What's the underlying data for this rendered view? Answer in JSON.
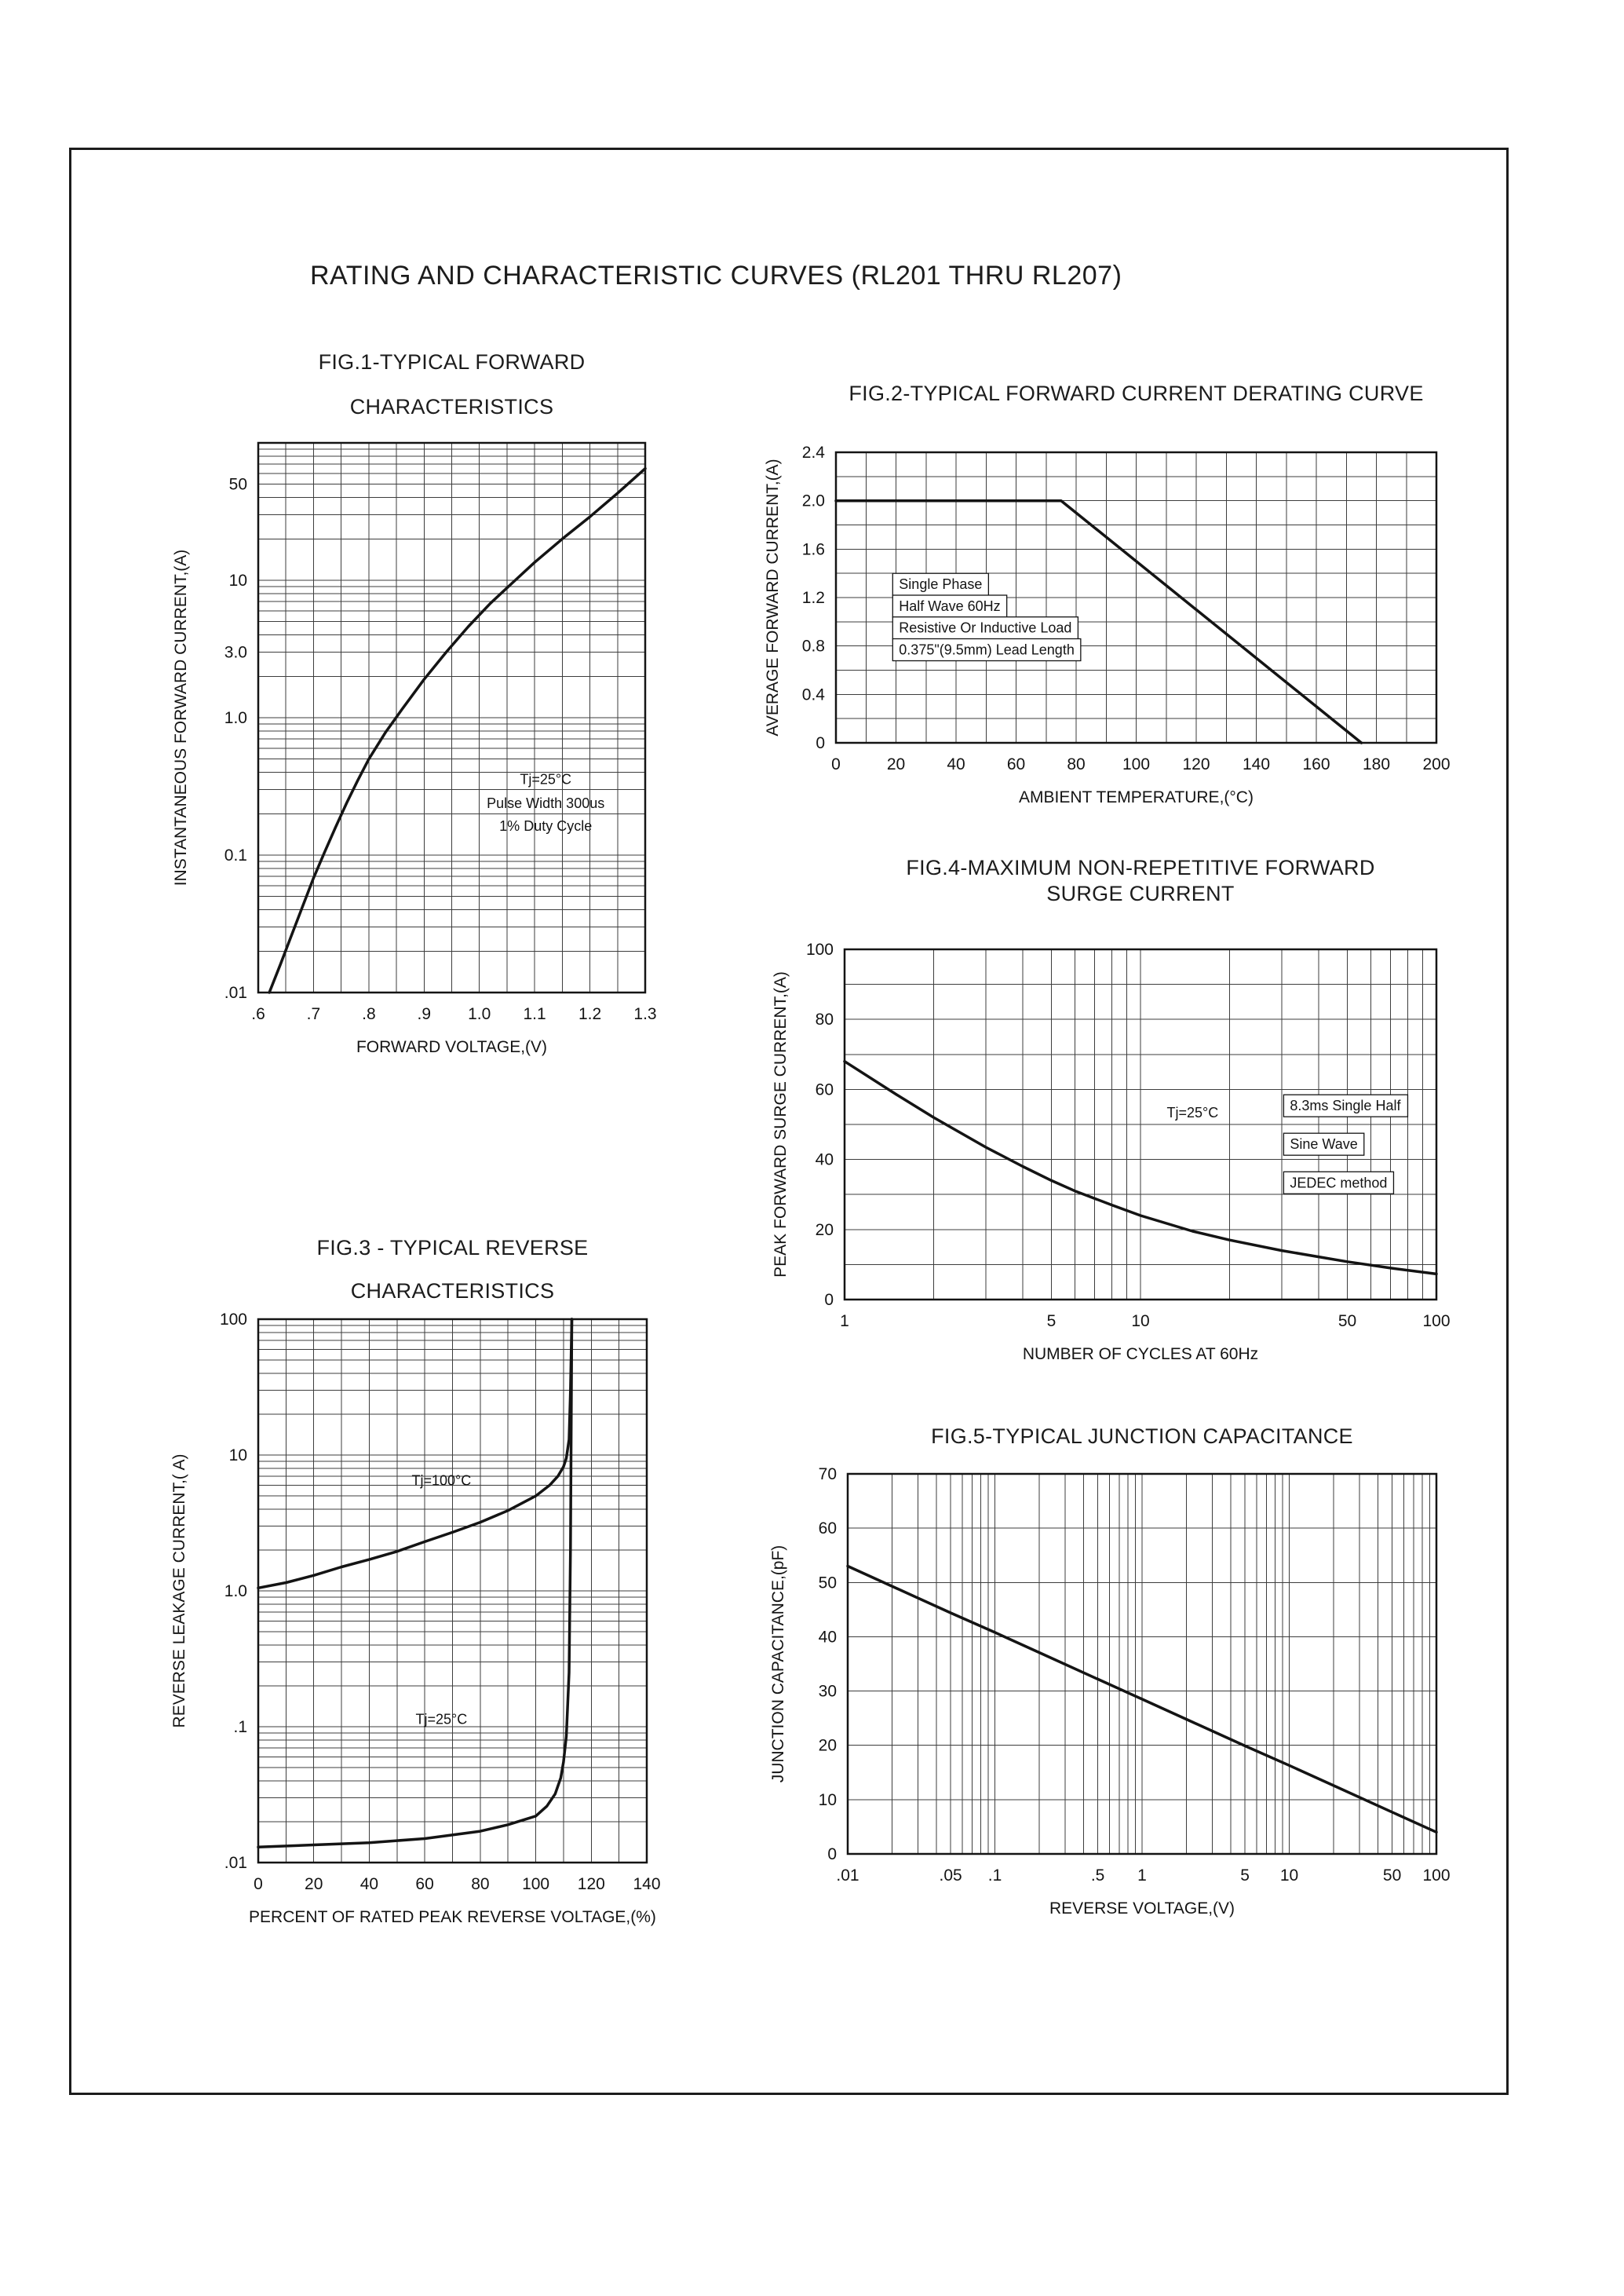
{
  "page": {
    "title": "RATING AND CHARACTERISTIC CURVES (RL201 THRU RL207)"
  },
  "chart_data": [
    {
      "id": "fig1",
      "type": "line",
      "title_lines": [
        "FIG.1-TYPICAL FORWARD",
        "CHARACTERISTICS"
      ],
      "xlabel": "FORWARD VOLTAGE,(V)",
      "ylabel": "INSTANTANEOUS FORWARD CURRENT,(A)",
      "x": {
        "scale": "linear",
        "min": 0.6,
        "max": 1.3,
        "grid_step": 0.05,
        "ticks": [
          {
            "v": 0.6,
            "label": ".6"
          },
          {
            "v": 0.7,
            "label": ".7"
          },
          {
            "v": 0.8,
            "label": ".8"
          },
          {
            "v": 0.9,
            "label": ".9"
          },
          {
            "v": 1.0,
            "label": "1.0"
          },
          {
            "v": 1.1,
            "label": "1.1"
          },
          {
            "v": 1.2,
            "label": "1.2"
          },
          {
            "v": 1.3,
            "label": "1.3"
          }
        ]
      },
      "y": {
        "scale": "log",
        "min": 0.01,
        "max": 100,
        "ticks": [
          {
            "v": 50,
            "label": "50"
          },
          {
            "v": 10,
            "label": "10"
          },
          {
            "v": 3,
            "label": "3.0"
          },
          {
            "v": 1,
            "label": "1.0"
          },
          {
            "v": 0.1,
            "label": "0.1"
          },
          {
            "v": 0.01,
            "label": ".01"
          }
        ]
      },
      "series": [
        {
          "name": "forward-current",
          "points": [
            [
              0.62,
              0.01
            ],
            [
              0.64,
              0.016
            ],
            [
              0.66,
              0.026
            ],
            [
              0.68,
              0.042
            ],
            [
              0.7,
              0.068
            ],
            [
              0.72,
              0.105
            ],
            [
              0.74,
              0.16
            ],
            [
              0.76,
              0.24
            ],
            [
              0.78,
              0.35
            ],
            [
              0.8,
              0.5
            ],
            [
              0.83,
              0.78
            ],
            [
              0.86,
              1.15
            ],
            [
              0.9,
              1.9
            ],
            [
              0.94,
              3.0
            ],
            [
              0.98,
              4.6
            ],
            [
              1.02,
              6.8
            ],
            [
              1.06,
              9.6
            ],
            [
              1.1,
              13.5
            ],
            [
              1.15,
              20
            ],
            [
              1.2,
              29
            ],
            [
              1.25,
              43
            ],
            [
              1.3,
              65
            ]
          ]
        }
      ],
      "annotations": [
        {
          "text": "Tj=25°C",
          "x": 1.12,
          "y": 0.33
        },
        {
          "text": "Pulse Width 300us",
          "x": 1.12,
          "y": 0.22
        },
        {
          "text": "1% Duty Cycle",
          "x": 1.12,
          "y": 0.15
        }
      ]
    },
    {
      "id": "fig2",
      "type": "line",
      "title_lines": [
        "FIG.2-TYPICAL FORWARD CURRENT DERATING CURVE"
      ],
      "xlabel": "AMBIENT TEMPERATURE,(°C)",
      "ylabel": "AVERAGE FORWARD CURRENT,(A)",
      "x": {
        "scale": "linear",
        "min": 0,
        "max": 200,
        "grid_step": 10,
        "ticks": [
          {
            "v": 0,
            "label": "0"
          },
          {
            "v": 20,
            "label": "20"
          },
          {
            "v": 40,
            "label": "40"
          },
          {
            "v": 60,
            "label": "60"
          },
          {
            "v": 80,
            "label": "80"
          },
          {
            "v": 100,
            "label": "100"
          },
          {
            "v": 120,
            "label": "120"
          },
          {
            "v": 140,
            "label": "140"
          },
          {
            "v": 160,
            "label": "160"
          },
          {
            "v": 180,
            "label": "180"
          },
          {
            "v": 200,
            "label": "200"
          }
        ]
      },
      "y": {
        "scale": "linear",
        "min": 0,
        "max": 2.4,
        "grid_step": 0.2,
        "ticks": [
          {
            "v": 2.4,
            "label": "2.4"
          },
          {
            "v": 2.0,
            "label": "2.0"
          },
          {
            "v": 1.6,
            "label": "1.6"
          },
          {
            "v": 1.2,
            "label": "1.2"
          },
          {
            "v": 0.8,
            "label": "0.8"
          },
          {
            "v": 0.4,
            "label": "0.4"
          },
          {
            "v": 0,
            "label": "0"
          }
        ]
      },
      "series": [
        {
          "name": "derating",
          "points": [
            [
              0,
              2.0
            ],
            [
              75,
              2.0
            ],
            [
              175,
              0
            ]
          ]
        }
      ],
      "annotations": [
        {
          "text": "Single Phase",
          "x": 21,
          "y": 1.27,
          "anchor": "start",
          "boxed": true
        },
        {
          "text": "Half Wave 60Hz",
          "x": 21,
          "y": 1.09,
          "anchor": "start",
          "boxed": true
        },
        {
          "text": "Resistive Or Inductive Load",
          "x": 21,
          "y": 0.91,
          "anchor": "start",
          "boxed": true
        },
        {
          "text": "0.375\"(9.5mm) Lead Length",
          "x": 21,
          "y": 0.73,
          "anchor": "start",
          "boxed": true
        }
      ]
    },
    {
      "id": "fig3",
      "type": "line",
      "title_lines": [
        "FIG.3 - TYPICAL REVERSE",
        "CHARACTERISTICS"
      ],
      "xlabel": "PERCENT OF RATED PEAK REVERSE VOLTAGE,(%)",
      "ylabel": "REVERSE LEAKAGE CURRENT,( A)",
      "x": {
        "scale": "linear",
        "min": 0,
        "max": 140,
        "grid_step": 10,
        "ticks": [
          {
            "v": 0,
            "label": "0"
          },
          {
            "v": 20,
            "label": "20"
          },
          {
            "v": 40,
            "label": "40"
          },
          {
            "v": 60,
            "label": "60"
          },
          {
            "v": 80,
            "label": "80"
          },
          {
            "v": 100,
            "label": "100"
          },
          {
            "v": 120,
            "label": "120"
          },
          {
            "v": 140,
            "label": "140"
          }
        ]
      },
      "y": {
        "scale": "log",
        "min": 0.01,
        "max": 100,
        "ticks": [
          {
            "v": 100,
            "label": "100"
          },
          {
            "v": 10,
            "label": "10"
          },
          {
            "v": 1,
            "label": "1.0"
          },
          {
            "v": 0.1,
            "label": ".1"
          },
          {
            "v": 0.01,
            "label": ".01"
          }
        ]
      },
      "series": [
        {
          "name": "tj100",
          "points": [
            [
              0,
              1.05
            ],
            [
              10,
              1.15
            ],
            [
              20,
              1.3
            ],
            [
              30,
              1.5
            ],
            [
              40,
              1.7
            ],
            [
              50,
              1.95
            ],
            [
              60,
              2.3
            ],
            [
              70,
              2.7
            ],
            [
              80,
              3.2
            ],
            [
              90,
              3.9
            ],
            [
              100,
              5.0
            ],
            [
              105,
              6.0
            ],
            [
              108,
              7.0
            ],
            [
              110,
              8.2
            ],
            [
              111,
              9.5
            ],
            [
              112,
              13
            ],
            [
              112.5,
              30
            ],
            [
              113,
              100
            ]
          ]
        },
        {
          "name": "tj25",
          "points": [
            [
              0,
              0.013
            ],
            [
              20,
              0.0135
            ],
            [
              40,
              0.014
            ],
            [
              60,
              0.015
            ],
            [
              80,
              0.017
            ],
            [
              90,
              0.019
            ],
            [
              100,
              0.022
            ],
            [
              104,
              0.026
            ],
            [
              107,
              0.032
            ],
            [
              109,
              0.042
            ],
            [
              110,
              0.055
            ],
            [
              111,
              0.085
            ],
            [
              112,
              0.25
            ],
            [
              112.5,
              2.0
            ],
            [
              113,
              100
            ]
          ]
        }
      ],
      "annotations": [
        {
          "text": "Tj=100°C",
          "x": 66,
          "y": 6
        },
        {
          "text": "Tj=25°C",
          "x": 66,
          "y": 0.105
        }
      ]
    },
    {
      "id": "fig4",
      "type": "line",
      "title_lines": [
        "FIG.4-MAXIMUM NON-REPETITIVE FORWARD",
        "SURGE CURRENT"
      ],
      "xlabel": "NUMBER OF CYCLES AT 60Hz",
      "ylabel": "PEAK FORWARD SURGE CURRENT,(A)",
      "x": {
        "scale": "log",
        "min": 1,
        "max": 100,
        "ticks": [
          {
            "v": 1,
            "label": "1"
          },
          {
            "v": 5,
            "label": "5"
          },
          {
            "v": 10,
            "label": "10"
          },
          {
            "v": 50,
            "label": "50"
          },
          {
            "v": 100,
            "label": "100"
          }
        ]
      },
      "y": {
        "scale": "linear",
        "min": 0,
        "max": 100,
        "grid_step": 10,
        "ticks": [
          {
            "v": 100,
            "label": "100"
          },
          {
            "v": 80,
            "label": "80"
          },
          {
            "v": 60,
            "label": "60"
          },
          {
            "v": 40,
            "label": "40"
          },
          {
            "v": 20,
            "label": "20"
          },
          {
            "v": 0,
            "label": "0"
          }
        ]
      },
      "series": [
        {
          "name": "surge",
          "points": [
            [
              1,
              68
            ],
            [
              1.5,
              58.5
            ],
            [
              2,
              52
            ],
            [
              3,
              43.5
            ],
            [
              4,
              38
            ],
            [
              5,
              34
            ],
            [
              6,
              31
            ],
            [
              8,
              27
            ],
            [
              10,
              24
            ],
            [
              15,
              19.5
            ],
            [
              20,
              17
            ],
            [
              30,
              14
            ],
            [
              40,
              12.2
            ],
            [
              50,
              10.8
            ],
            [
              70,
              9
            ],
            [
              100,
              7.3
            ]
          ]
        }
      ],
      "annotations": [
        {
          "text": "Tj=25°C",
          "x": 15,
          "y": 52
        },
        {
          "text": "8.3ms Single Half",
          "x": 32,
          "y": 54,
          "anchor": "start",
          "boxed": true
        },
        {
          "text": "Sine Wave",
          "x": 32,
          "y": 43,
          "anchor": "start",
          "boxed": true
        },
        {
          "text": "JEDEC method",
          "x": 32,
          "y": 32,
          "anchor": "start",
          "boxed": true
        }
      ]
    },
    {
      "id": "fig5",
      "type": "line",
      "title_lines": [
        "FIG.5-TYPICAL JUNCTION CAPACITANCE"
      ],
      "xlabel": "REVERSE VOLTAGE,(V)",
      "ylabel": "JUNCTION CAPACITANCE,(pF)",
      "x": {
        "scale": "log",
        "min": 0.01,
        "max": 100,
        "ticks": [
          {
            "v": 0.01,
            "label": ".01"
          },
          {
            "v": 0.05,
            "label": ".05"
          },
          {
            "v": 0.1,
            "label": ".1"
          },
          {
            "v": 0.5,
            "label": ".5"
          },
          {
            "v": 1,
            "label": "1"
          },
          {
            "v": 5,
            "label": "5"
          },
          {
            "v": 10,
            "label": "10"
          },
          {
            "v": 50,
            "label": "50"
          },
          {
            "v": 100,
            "label": "100"
          }
        ]
      },
      "y": {
        "scale": "linear",
        "min": 0,
        "max": 70,
        "grid_step": 10,
        "ticks": [
          {
            "v": 70,
            "label": "70"
          },
          {
            "v": 60,
            "label": "60"
          },
          {
            "v": 50,
            "label": "50"
          },
          {
            "v": 40,
            "label": "40"
          },
          {
            "v": 30,
            "label": "30"
          },
          {
            "v": 20,
            "label": "20"
          },
          {
            "v": 10,
            "label": "10"
          },
          {
            "v": 0,
            "label": "0"
          }
        ]
      },
      "series": [
        {
          "name": "capacitance",
          "points": [
            [
              0.01,
              53
            ],
            [
              0.02,
              49.3
            ],
            [
              0.05,
              44.4
            ],
            [
              0.1,
              40.8
            ],
            [
              0.2,
              37.1
            ],
            [
              0.5,
              32.2
            ],
            [
              1,
              28.5
            ],
            [
              2,
              24.8
            ],
            [
              5,
              19.9
            ],
            [
              10,
              16.3
            ],
            [
              20,
              12.6
            ],
            [
              50,
              7.7
            ],
            [
              100,
              4.0
            ]
          ]
        }
      ],
      "annotations": []
    }
  ]
}
